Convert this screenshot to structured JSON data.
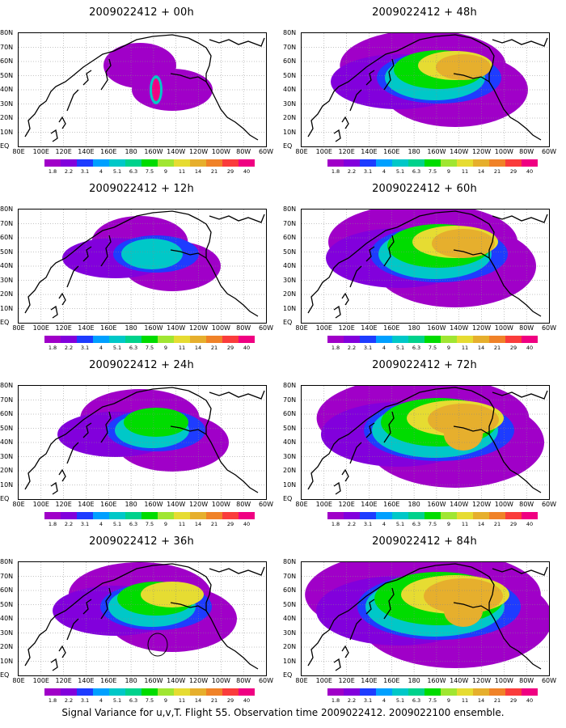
{
  "panels": [
    {
      "title": "2009022412 + 00h",
      "level": 0
    },
    {
      "title": "2009022412 + 48h",
      "level": 4
    },
    {
      "title": "2009022412 + 12h",
      "level": 1
    },
    {
      "title": "2009022412 + 60h",
      "level": 5
    },
    {
      "title": "2009022412 + 24h",
      "level": 2
    },
    {
      "title": "2009022412 + 72h",
      "level": 6
    },
    {
      "title": "2009022412 + 36h",
      "level": 3
    },
    {
      "title": "2009022412 + 84h",
      "level": 7
    }
  ],
  "lon_labels": [
    "80E",
    "100E",
    "120E",
    "140E",
    "160E",
    "180",
    "160W",
    "140W",
    "120W",
    "100W",
    "80W",
    "60W"
  ],
  "lat_labels": [
    "80N",
    "70N",
    "60N",
    "50N",
    "40N",
    "30N",
    "20N",
    "10N",
    "EQ"
  ],
  "colorbar": {
    "labels": [
      "1.8",
      "2.2",
      "3.1",
      "4",
      "5.1",
      "6.3",
      "7.5",
      "9",
      "11",
      "14",
      "21",
      "29",
      "40"
    ],
    "colors": [
      "#a000c8",
      "#8200dc",
      "#1e3cff",
      "#00a0ff",
      "#00c8c8",
      "#00d28c",
      "#00dc00",
      "#a0e632",
      "#e6dc32",
      "#e6af2d",
      "#f08228",
      "#fa3c3c",
      "#f00082"
    ]
  },
  "footer": "Signal Variance for u,v,T. Flight 55. Observation time 2009022412. 2009022100 ensemble."
}
